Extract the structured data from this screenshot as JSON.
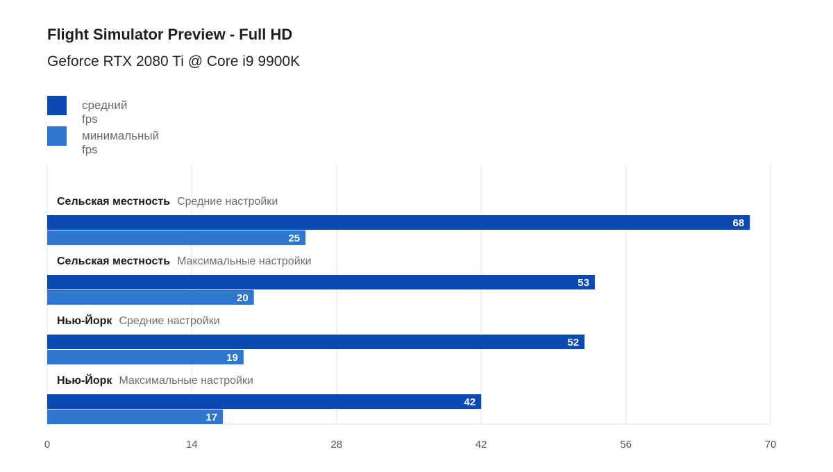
{
  "title": "Flight Simulator Preview - Full HD",
  "subtitle": "Geforce RTX 2080 Ti @ Core i9 9900K",
  "colors": {
    "avg": "#0b49b3",
    "min": "#2f76cf",
    "grid": "#e3e3e3",
    "label_bold": "#1a1a1a",
    "label_light": "#6d6d6d",
    "tick": "#555555"
  },
  "chart_data": {
    "type": "bar",
    "orientation": "horizontal",
    "title": "Flight Simulator Preview - Full HD",
    "subtitle": "Geforce RTX 2080 Ti @ Core i9 9900K",
    "legend_position": "top-left",
    "grid": true,
    "xlim": [
      0,
      70
    ],
    "xticks": [
      0,
      14,
      28,
      42,
      56,
      70
    ],
    "categories": [
      {
        "name": "Сельская местность",
        "setting": "Средние настройки"
      },
      {
        "name": "Сельская местность",
        "setting": "Максимальные настройки"
      },
      {
        "name": "Нью-Йорк",
        "setting": "Средние настройки"
      },
      {
        "name": "Нью-Йорк",
        "setting": "Максимальные настройки"
      }
    ],
    "series": [
      {
        "name": "средний fps",
        "values": [
          68,
          53,
          52,
          42
        ]
      },
      {
        "name": "минимальный fps",
        "values": [
          25,
          20,
          19,
          17
        ]
      }
    ]
  }
}
